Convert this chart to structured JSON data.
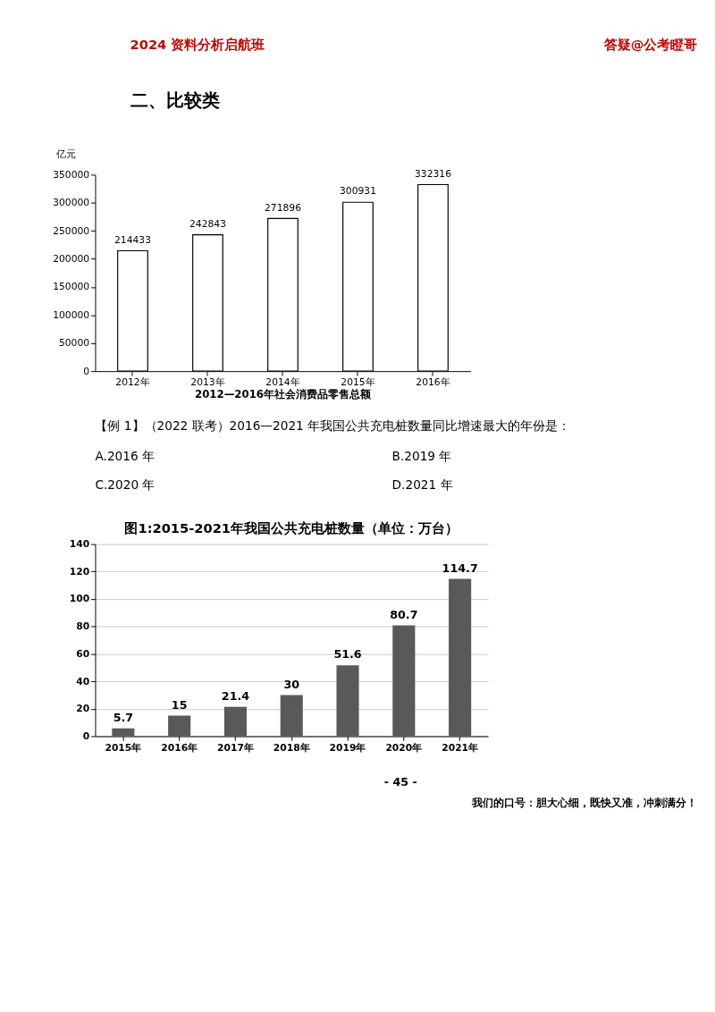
{
  "chart_data": [
    {
      "type": "bar",
      "title": "2012—2016年社会消费品零售总额",
      "ylabel": "亿元",
      "categories": [
        "2012年",
        "2013年",
        "2014年",
        "2015年",
        "2016年"
      ],
      "values": [
        214433,
        242843,
        271896,
        300931,
        332316
      ],
      "color": "#ffffff",
      "ylim": [
        0,
        350000
      ],
      "yticks": [
        0,
        50000,
        100000,
        150000,
        200000,
        250000,
        300000,
        350000
      ],
      "grid": false,
      "data_labels": true,
      "annotations": [
        "2024 资料分析启航班",
        "答疑@公考瞪哥",
        "二、比较类"
      ]
    },
    {
      "type": "bar",
      "title": "图1:2015-2021年我国公共充电桩数量（单位：万台）",
      "categories": [
        "2015年",
        "2016年",
        "2017年",
        "2018年",
        "2019年",
        "2020年",
        "2021年"
      ],
      "values": [
        5.7,
        15,
        21.4,
        30,
        51.6,
        80.7,
        114.7
      ],
      "color": "#595959",
      "ylim": [
        0,
        140
      ],
      "yticks": [
        0,
        20,
        40,
        60,
        80,
        100,
        120,
        140
      ],
      "grid": "y",
      "data_labels": true,
      "annotations": [
        "【例 1】（2022 联考）2016—2021 年我国公共充电桩数量同比增速最大的年份是：",
        "A.2016 年",
        "B.2019 年",
        "C.2020 年",
        "D.2021 年",
        "- 45 -",
        "我们的口号：胆大心细，既快又准，冲刺满分！"
      ]
    }
  ]
}
